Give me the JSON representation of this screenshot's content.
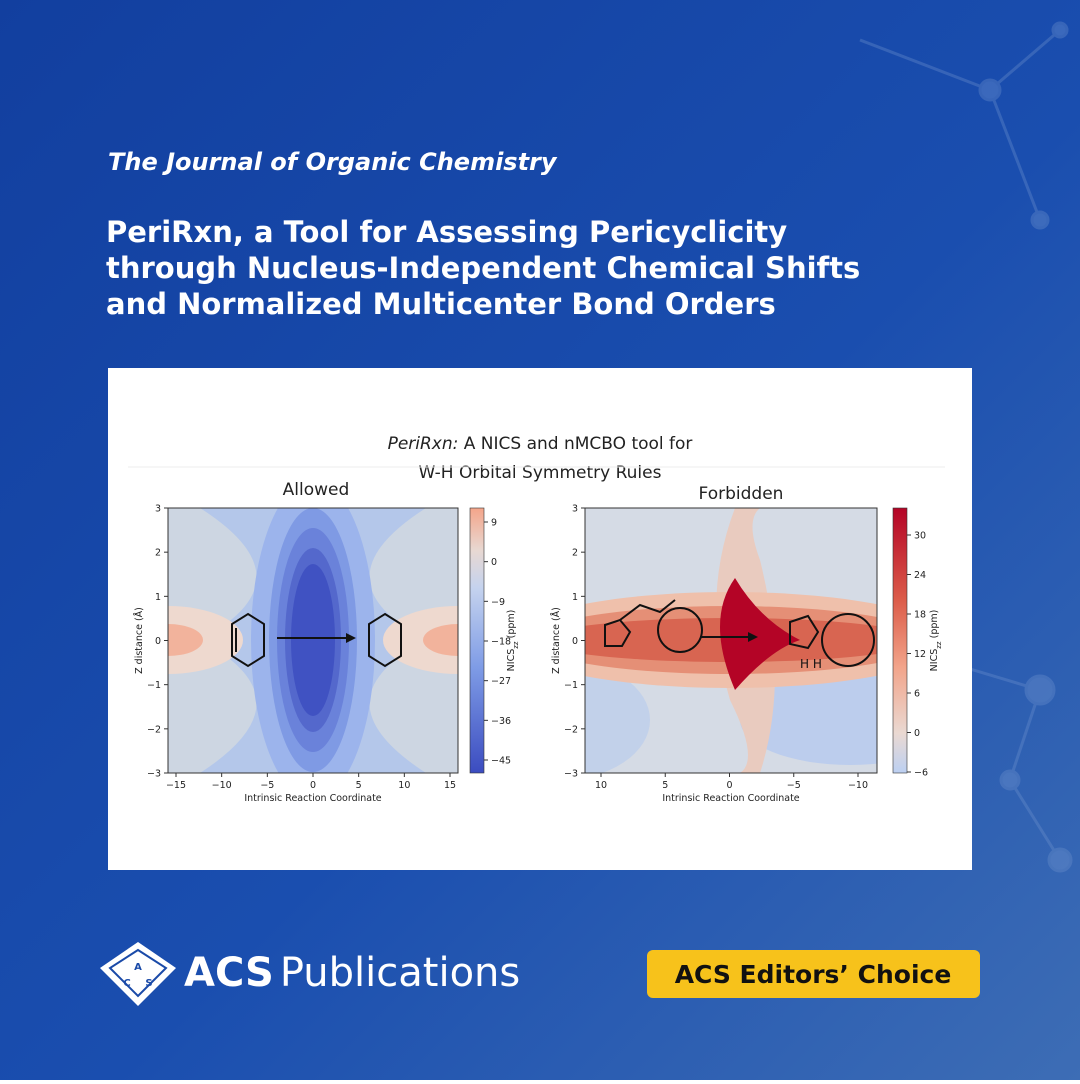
{
  "journal": "The Journal of Organic Chemistry",
  "title_lines": [
    "PeriRxn, a Tool for Assessing Pericyclicity",
    "through Nucleus-Independent Chemical Shifts",
    "and Normalized Multicenter Bond Orders"
  ],
  "figure": {
    "title_italic": "PeriRxn:",
    "title_rest": " A NICS and nMCBO tool for",
    "title_line2": "W-H Orbital Symmetry Rules",
    "panels": [
      {
        "title": "Allowed",
        "xlabel": "Intrinsic Reaction Coordinate",
        "ylabel": "Z distance (Å)",
        "xticks": [
          "−15",
          "−10",
          "−5",
          "0",
          "5",
          "10",
          "15"
        ],
        "yticks": [
          "3",
          "2",
          "1",
          "0",
          "−1",
          "−2",
          "−3"
        ],
        "colorbar_label": [
          "NICS",
          "zz",
          " (ppm)"
        ],
        "colorbar_ticks": [
          "9",
          "0",
          "−9",
          "−18",
          "−27",
          "−36",
          "−45"
        ]
      },
      {
        "title": "Forbidden",
        "xlabel": "Intrinsic Reaction Coordinate",
        "ylabel": "Z distance (Å)",
        "xticks": [
          "10",
          "5",
          "0",
          "−5",
          "−10"
        ],
        "yticks": [
          "3",
          "2",
          "1",
          "0",
          "−1",
          "−2",
          "−3"
        ],
        "colorbar_label": [
          "NICS",
          "zz",
          " (ppm)"
        ],
        "colorbar_ticks": [
          "30",
          "24",
          "18",
          "12",
          "6",
          "0",
          "−6"
        ],
        "molecule_label": "H H"
      }
    ]
  },
  "brand": {
    "logo_letters": [
      "A",
      "C",
      "S"
    ],
    "name_bold": "ACS",
    "name_rest": "Publications"
  },
  "badge": "ACS Editors’ Choice"
}
